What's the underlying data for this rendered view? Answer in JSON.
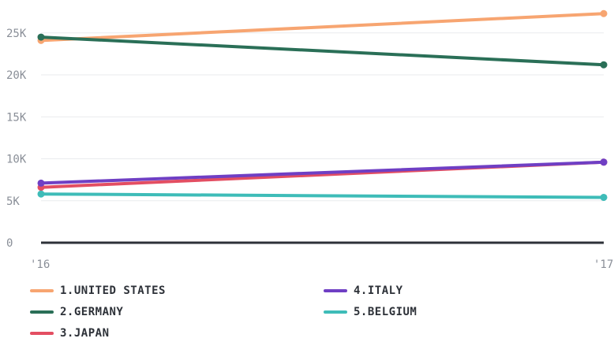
{
  "chart_data": {
    "type": "line",
    "x": [
      "'16",
      "'17"
    ],
    "yticks": [
      "0",
      "5K",
      "10K",
      "15K",
      "20K",
      "25K"
    ],
    "ylim": [
      0,
      27500
    ],
    "grid": true,
    "legend_position": "bottom",
    "series": [
      {
        "name": "1.UNITED STATES",
        "color": "#f7a571",
        "values": [
          24100,
          27300
        ]
      },
      {
        "name": "2.GERMANY",
        "color": "#2a6f57",
        "values": [
          24500,
          21200
        ]
      },
      {
        "name": "3.JAPAN",
        "color": "#e34e62",
        "values": [
          6600,
          9600
        ]
      },
      {
        "name": "4.ITALY",
        "color": "#6f3fc4",
        "values": [
          7100,
          9600
        ]
      },
      {
        "name": "5.BELGIUM",
        "color": "#3ebcb8",
        "values": [
          5800,
          5400
        ]
      }
    ]
  }
}
